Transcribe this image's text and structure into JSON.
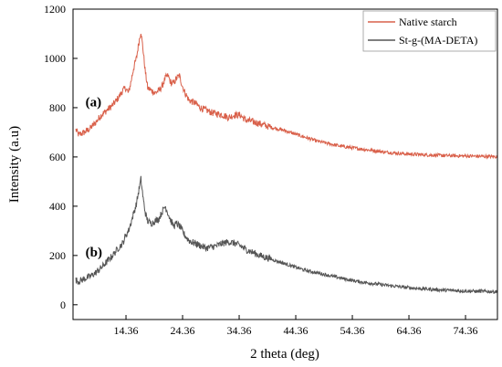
{
  "chart_data": {
    "type": "line",
    "title": "",
    "xlabel": "2 theta (deg)",
    "ylabel": "Intensity (a.u)",
    "xlim": [
      5,
      80
    ],
    "ylim": [
      -60,
      1200
    ],
    "x_ticks": [
      14.36,
      24.36,
      34.36,
      44.36,
      54.36,
      64.36,
      74.36
    ],
    "x_tick_labels": [
      "14.36",
      "24.36",
      "34.36",
      "44.36",
      "54.36",
      "64.36",
      "74.36"
    ],
    "y_ticks": [
      0,
      200,
      400,
      600,
      800,
      1000,
      1200
    ],
    "y_tick_labels": [
      "0",
      "200",
      "400",
      "600",
      "800",
      "1000",
      "1200"
    ],
    "grid": false,
    "legend_position": "top-right",
    "annotations": [
      {
        "text": "(a)",
        "x": 7.2,
        "y": 805
      },
      {
        "text": "(b)",
        "x": 7.2,
        "y": 195
      }
    ],
    "series": [
      {
        "name": "Native starch",
        "color": "#d9604a",
        "x": [
          5.5,
          6,
          7,
          8,
          9,
          10,
          11,
          12,
          13,
          13.8,
          14.3,
          14.8,
          15.2,
          15.7,
          16.2,
          16.6,
          17,
          17.4,
          17.8,
          18.2,
          18.8,
          19.5,
          20.2,
          20.8,
          21.3,
          21.8,
          22.3,
          22.8,
          23.3,
          23.8,
          24.3,
          24.8,
          25.5,
          26.5,
          27.5,
          28.5,
          29.5,
          30.5,
          31.5,
          32.5,
          33.5,
          34.5,
          35.5,
          36.5,
          38,
          40,
          42,
          44,
          46,
          48,
          50,
          52,
          54,
          56,
          58,
          60,
          62,
          64,
          66,
          68,
          70,
          72,
          74,
          76,
          78,
          80
        ],
        "y": [
          710,
          690,
          700,
          715,
          740,
          770,
          790,
          810,
          840,
          870,
          880,
          860,
          900,
          960,
          1000,
          1060,
          1110,
          1030,
          940,
          880,
          870,
          860,
          870,
          890,
          920,
          930,
          900,
          900,
          920,
          930,
          890,
          860,
          830,
          820,
          800,
          790,
          780,
          775,
          770,
          760,
          770,
          770,
          750,
          745,
          735,
          720,
          710,
          695,
          680,
          665,
          655,
          645,
          638,
          632,
          626,
          620,
          616,
          612,
          610,
          608,
          606,
          605,
          604,
          603,
          602,
          601
        ]
      },
      {
        "name": "St-g-(MA-DETA)",
        "color": "#555555",
        "x": [
          5.5,
          6,
          7,
          8,
          9,
          10,
          11,
          12,
          13,
          13.8,
          14.3,
          14.8,
          15.2,
          15.7,
          16.2,
          16.6,
          17,
          17.4,
          17.8,
          18.2,
          18.8,
          19.5,
          20.2,
          20.8,
          21.3,
          21.8,
          22.3,
          22.8,
          23.3,
          23.8,
          24.3,
          24.8,
          25.5,
          26.5,
          27.5,
          28.5,
          29.5,
          30.5,
          31.5,
          32.5,
          33.5,
          34.5,
          35.5,
          36.5,
          38,
          40,
          42,
          44,
          46,
          48,
          50,
          52,
          54,
          56,
          58,
          60,
          62,
          64,
          66,
          68,
          70,
          72,
          74,
          76,
          78,
          80
        ],
        "y": [
          100,
          95,
          105,
          115,
          130,
          150,
          175,
          200,
          230,
          250,
          280,
          300,
          330,
          370,
          410,
          460,
          510,
          430,
          370,
          340,
          330,
          340,
          350,
          380,
          400,
          370,
          340,
          320,
          330,
          320,
          300,
          280,
          260,
          250,
          240,
          230,
          235,
          240,
          250,
          255,
          250,
          240,
          225,
          215,
          200,
          185,
          170,
          155,
          140,
          130,
          120,
          110,
          100,
          92,
          86,
          80,
          75,
          70,
          66,
          63,
          60,
          58,
          56,
          55,
          54,
          53
        ]
      }
    ]
  }
}
